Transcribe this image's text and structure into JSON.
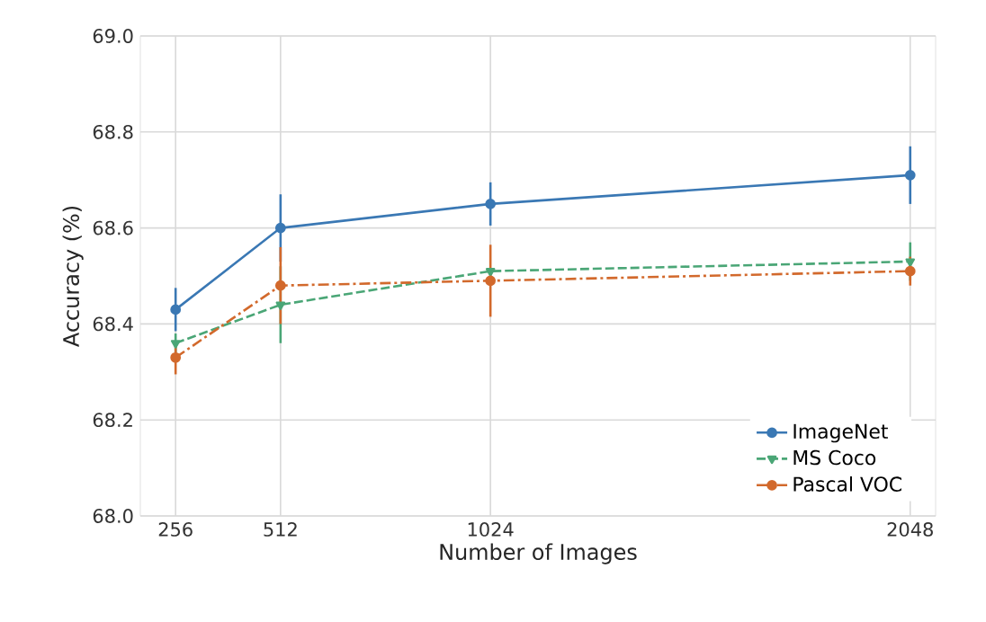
{
  "chart_data": {
    "type": "line",
    "xlabel": "Number of Images",
    "ylabel": "Accuracy (%)",
    "x": [
      256,
      512,
      1024,
      2048
    ],
    "series": [
      {
        "name": "ImageNet",
        "color": "#3a78b4",
        "values": [
          68.43,
          68.6,
          68.65,
          68.71
        ],
        "errors": [
          0.045,
          0.07,
          0.045,
          0.06
        ],
        "marker": "circle",
        "line_style": "solid"
      },
      {
        "name": "MS Coco",
        "color": "#4aa676",
        "values": [
          68.36,
          68.44,
          68.51,
          68.53
        ],
        "errors": [
          0.02,
          0.08,
          null,
          0.04
        ],
        "marker": "triangle",
        "line_style": "dashed"
      },
      {
        "name": "Pascal VOC",
        "color": "#d2692c",
        "values": [
          68.33,
          68.48,
          68.49,
          68.51
        ],
        "errors": [
          0.035,
          0.08,
          0.075,
          0.03
        ],
        "marker": "circle",
        "line_style": "dashdot"
      }
    ],
    "xlim": [
      170,
      2110
    ],
    "ylim": [
      68.0,
      69.0
    ],
    "xticks": [
      256,
      512,
      1024,
      2048
    ],
    "yticks": [
      {
        "value": 68.0,
        "label": "68.0"
      },
      {
        "value": 68.2,
        "label": "68.2"
      },
      {
        "value": 68.4,
        "label": "68.4"
      },
      {
        "value": 68.6,
        "label": "68.6"
      },
      {
        "value": 68.8,
        "label": "68.8"
      },
      {
        "value": 69.0,
        "label": "69.0"
      }
    ],
    "grid": true,
    "legend": "bottom right"
  }
}
